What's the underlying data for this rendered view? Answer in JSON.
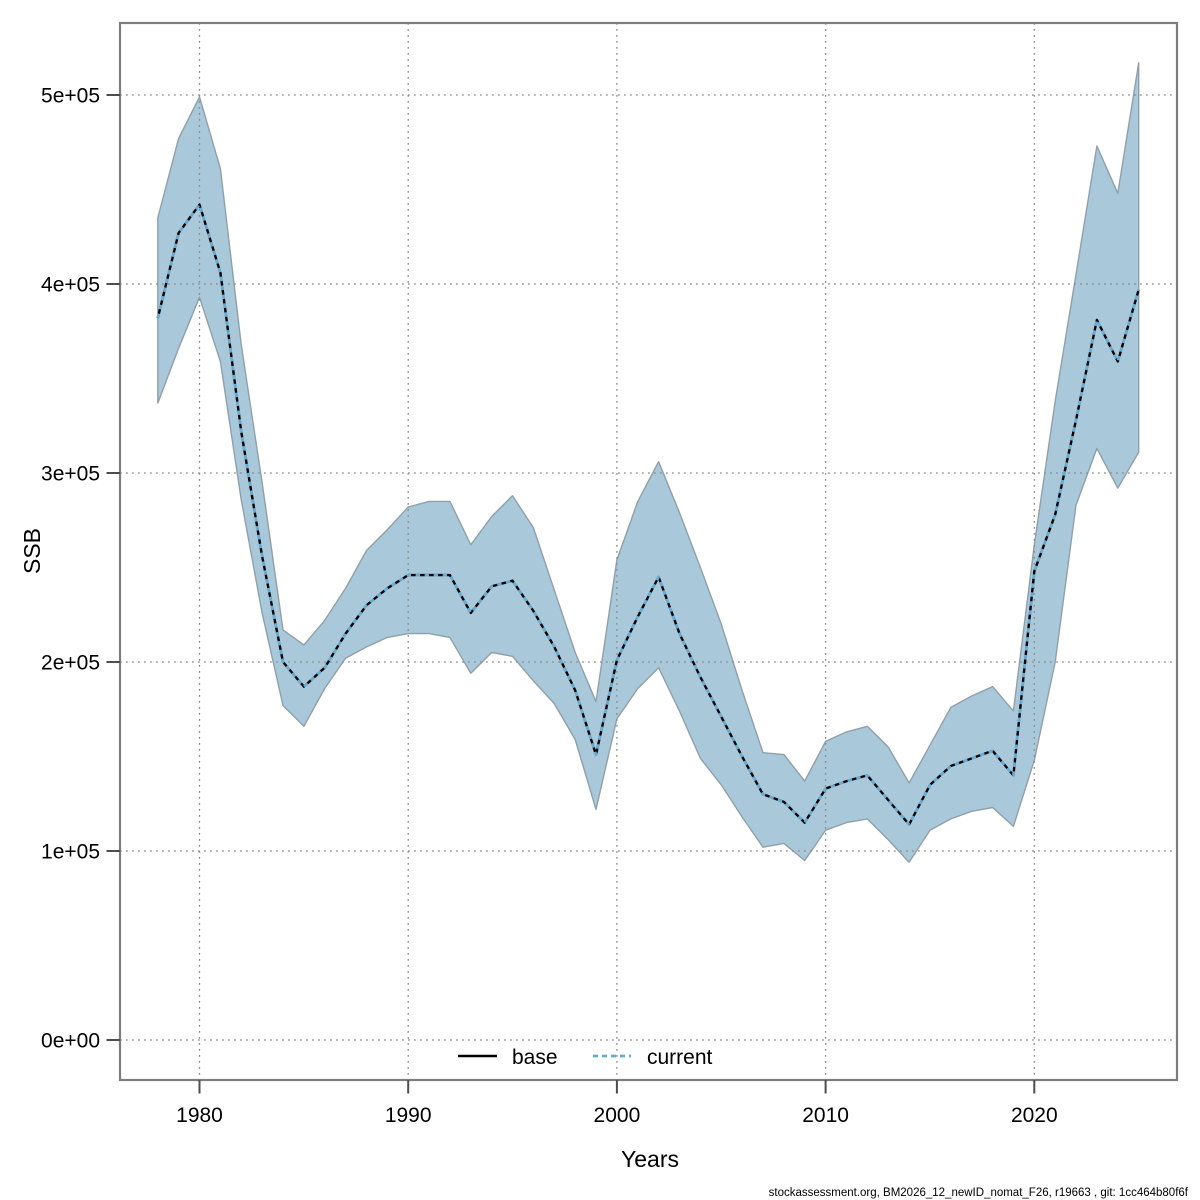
{
  "figure": {
    "background": "#ffffff"
  },
  "axes": {
    "x_label": "Years",
    "y_label": "SSB",
    "x_ticks": [
      {
        "label": "1980",
        "value": 1980
      },
      {
        "label": "1990",
        "value": 1990
      },
      {
        "label": "2000",
        "value": 2000
      },
      {
        "label": "2010",
        "value": 2010
      },
      {
        "label": "2020",
        "value": 2020
      }
    ],
    "y_ticks": [
      {
        "label": "0e+00",
        "value": 0
      },
      {
        "label": "1e+05",
        "value": 100000
      },
      {
        "label": "2e+05",
        "value": 200000
      },
      {
        "label": "3e+05",
        "value": 300000
      },
      {
        "label": "4e+05",
        "value": 400000
      },
      {
        "label": "5e+05",
        "value": 500000
      }
    ]
  },
  "legend": {
    "base_label": "base",
    "current_label": "current"
  },
  "footer": "stockassessment.org, BM2026_12_newID_nomat_F26, r19663 , git: 1cc464b80f6f",
  "colors": {
    "band_fill": "#A9C8D9",
    "band_edge": "#8FA0AA",
    "base_line": "#000000",
    "current_line": "#67ACD3",
    "grid": "#8A8A8A",
    "frame": "#7D7D7D",
    "tick": "#4D4D4D",
    "text": "#000000"
  },
  "chart_data": {
    "type": "line",
    "title": "",
    "xlabel": "Years",
    "ylabel": "SSB",
    "xlim": [
      1976.2,
      2026.8
    ],
    "ylim": [
      -21000,
      538000
    ],
    "grid": "dotted",
    "legend_position": "bottom-center",
    "years": [
      1978,
      1979,
      1980,
      1981,
      1982,
      1983,
      1984,
      1985,
      1986,
      1987,
      1988,
      1989,
      1990,
      1991,
      1992,
      1993,
      1994,
      1995,
      1996,
      1997,
      1998,
      1999,
      2000,
      2001,
      2002,
      2003,
      2004,
      2005,
      2006,
      2007,
      2008,
      2009,
      2010,
      2011,
      2012,
      2013,
      2014,
      2015,
      2016,
      2017,
      2018,
      2019,
      2020,
      2021,
      2022,
      2023,
      2024,
      2025
    ],
    "series": [
      {
        "name": "base",
        "style": "solid",
        "color": "#000000",
        "note": "coincides with current line"
      },
      {
        "name": "current",
        "style": "dashed",
        "color": "#67ACD3",
        "values": [
          382000,
          427000,
          442000,
          406000,
          322000,
          256000,
          200000,
          187000,
          197000,
          215000,
          230000,
          239000,
          246000,
          246000,
          246000,
          226000,
          240000,
          243000,
          227000,
          208000,
          185000,
          151000,
          201000,
          224000,
          245000,
          215000,
          192000,
          171000,
          150000,
          130000,
          126000,
          115000,
          133000,
          137000,
          140000,
          127000,
          114000,
          135000,
          145000,
          149000,
          153000,
          140000,
          248000,
          278000,
          328000,
          381000,
          359000,
          397000
        ]
      }
    ],
    "band": {
      "label": "confidence-interval",
      "fill": "#A9C8D9",
      "lower": [
        337000,
        366000,
        393000,
        359000,
        286000,
        226000,
        177000,
        166000,
        186000,
        202000,
        208000,
        213000,
        215000,
        215000,
        213000,
        194000,
        205000,
        203000,
        190000,
        178000,
        159000,
        122000,
        170000,
        186000,
        197000,
        174000,
        149000,
        135000,
        118000,
        102000,
        104000,
        95000,
        111000,
        115000,
        117000,
        106000,
        94000,
        111000,
        117000,
        121000,
        123000,
        113000,
        148000,
        200000,
        283000,
        313000,
        292000,
        311000
      ],
      "upper": [
        435000,
        477000,
        499000,
        461000,
        368000,
        295000,
        217000,
        209000,
        222000,
        239000,
        259000,
        270000,
        282000,
        285000,
        285000,
        262000,
        277000,
        288000,
        271000,
        238000,
        205000,
        179000,
        254000,
        285000,
        306000,
        279000,
        250000,
        220000,
        185000,
        152000,
        151000,
        137000,
        158000,
        163000,
        166000,
        155000,
        136000,
        156000,
        176000,
        182000,
        187000,
        174000,
        262000,
        338000,
        405000,
        473000,
        448000,
        517000
      ]
    }
  }
}
